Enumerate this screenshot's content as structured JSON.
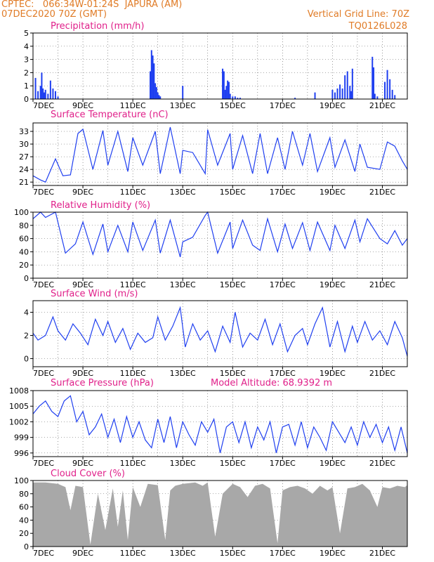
{
  "header": {
    "line1": "CPTEC:   066:34W-01:24S  JAPURA (AM)",
    "line2": "07DEC2020 70Z (GMT)",
    "grid_note": "Vertical Grid Line: 70Z",
    "code": "TQ0126L028"
  },
  "colors": {
    "header": "#e07b26",
    "title": "#e0208a",
    "series": "#1f3ff0",
    "cloud": "#a8a8a8",
    "grid": "#000000"
  },
  "x_ticks": [
    "7DEC",
    "9DEC",
    "11DEC",
    "13DEC",
    "15DEC",
    "17DEC",
    "19DEC",
    "21DEC"
  ],
  "chart_data": [
    {
      "id": "precip",
      "type": "bar",
      "title": "Precipitation (mm/h)",
      "ylim": [
        0,
        5
      ],
      "yticks": [
        0,
        1,
        2,
        3,
        4,
        5
      ],
      "grid": "vertical dotted",
      "x_unit": "days after 7DEC 00Z",
      "x_range": [
        0,
        15
      ],
      "x": [
        0.1,
        0.2,
        0.3,
        0.35,
        0.4,
        0.45,
        0.5,
        0.6,
        0.7,
        0.8,
        0.9,
        1.0,
        4.7,
        4.75,
        4.8,
        4.85,
        4.9,
        4.95,
        5.0,
        5.05,
        5.1,
        6.0,
        7.6,
        7.65,
        7.7,
        7.75,
        7.8,
        7.85,
        7.9,
        8.0,
        8.1,
        8.2,
        8.3,
        10.5,
        11.3,
        12.0,
        12.1,
        12.2,
        12.3,
        12.4,
        12.5,
        12.6,
        12.7,
        12.75,
        12.8,
        13.6,
        13.65,
        13.7,
        13.8,
        14.1,
        14.2,
        14.3,
        14.4,
        14.5
      ],
      "values": [
        1.6,
        0.6,
        1.0,
        2.0,
        0.8,
        0.5,
        0.7,
        0.4,
        1.4,
        0.8,
        0.6,
        0.2,
        2.1,
        3.7,
        3.3,
        2.7,
        1.2,
        0.9,
        0.5,
        0.3,
        0.2,
        1.0,
        2.3,
        2.1,
        0.7,
        1.0,
        1.4,
        1.3,
        0.4,
        0.2,
        0.2,
        0.1,
        0.1,
        0.1,
        0.5,
        0.7,
        0.5,
        0.8,
        1.1,
        0.8,
        1.8,
        2.1,
        1.0,
        0.6,
        2.3,
        3.2,
        2.4,
        0.4,
        0.2,
        1.3,
        2.2,
        1.5,
        0.7,
        0.3
      ]
    },
    {
      "id": "temp",
      "type": "line",
      "title": "Surface Temperature (nC)",
      "ylim": [
        20.2,
        35
      ],
      "yticks": [
        21,
        24,
        27,
        30,
        33
      ],
      "grid": "vertical dotted",
      "x_unit": "days after 7DEC 00Z",
      "x_range": [
        0,
        15
      ],
      "x": [
        0,
        0.3,
        0.5,
        0.9,
        1.2,
        1.5,
        1.8,
        2.0,
        2.4,
        2.8,
        3.0,
        3.4,
        3.8,
        4.0,
        4.4,
        4.9,
        5.1,
        5.5,
        5.9,
        6.0,
        6.4,
        6.9,
        7.0,
        7.4,
        7.9,
        8.0,
        8.4,
        8.8,
        9.1,
        9.4,
        9.8,
        10.1,
        10.4,
        10.8,
        11.1,
        11.4,
        11.9,
        12.1,
        12.5,
        12.9,
        13.1,
        13.4,
        13.9,
        14.2,
        14.5,
        14.8,
        15.0
      ],
      "values": [
        22.5,
        21.5,
        21.0,
        26.5,
        22.5,
        22.7,
        32.5,
        33.5,
        24.0,
        33.2,
        25.0,
        33.0,
        23.5,
        31.5,
        25.0,
        33.0,
        23.0,
        34.0,
        23.0,
        28.5,
        28.0,
        23.0,
        33.4,
        25.0,
        32.5,
        24.0,
        32.0,
        23.0,
        32.5,
        23.0,
        31.5,
        24.0,
        33.0,
        25.0,
        32.5,
        23.5,
        31.5,
        24.5,
        31.0,
        23.5,
        30.0,
        24.5,
        24.0,
        30.5,
        29.5,
        26.0,
        24.0
      ]
    },
    {
      "id": "rh",
      "type": "line",
      "title": "Relative Humidity (%)",
      "ylim": [
        0,
        100
      ],
      "yticks": [
        0,
        20,
        40,
        60,
        80,
        100
      ],
      "grid": "vertical dotted",
      "x_unit": "days after 7DEC 00Z",
      "x_range": [
        0,
        15
      ],
      "x": [
        0,
        0.3,
        0.5,
        0.9,
        1.3,
        1.7,
        2.0,
        2.4,
        2.8,
        3.0,
        3.4,
        3.8,
        4.0,
        4.4,
        4.9,
        5.1,
        5.5,
        5.9,
        6.0,
        6.4,
        6.9,
        7.0,
        7.4,
        7.9,
        8.0,
        8.4,
        8.8,
        9.1,
        9.4,
        9.8,
        10.1,
        10.4,
        10.8,
        11.1,
        11.4,
        11.9,
        12.1,
        12.5,
        12.9,
        13.1,
        13.4,
        13.9,
        14.2,
        14.5,
        14.8,
        15.0
      ],
      "values": [
        90,
        100,
        92,
        100,
        38,
        52,
        85,
        36,
        82,
        40,
        80,
        40,
        85,
        42,
        88,
        38,
        88,
        32,
        55,
        62,
        95,
        100,
        38,
        85,
        45,
        88,
        50,
        42,
        90,
        40,
        82,
        45,
        84,
        42,
        85,
        42,
        80,
        45,
        88,
        55,
        90,
        60,
        52,
        72,
        50,
        60
      ]
    },
    {
      "id": "wind",
      "type": "line",
      "title": "Surface Wind (m/s)",
      "ylim": [
        -0.7,
        5
      ],
      "yticks": [
        0,
        2,
        4
      ],
      "grid": "vertical dotted",
      "x_unit": "days after 7DEC 00Z",
      "x_range": [
        0,
        15
      ],
      "x": [
        0,
        0.2,
        0.5,
        0.8,
        1.0,
        1.3,
        1.6,
        1.9,
        2.2,
        2.5,
        2.8,
        3.0,
        3.3,
        3.6,
        3.9,
        4.2,
        4.5,
        4.8,
        5.0,
        5.3,
        5.6,
        5.9,
        6.1,
        6.4,
        6.7,
        7.0,
        7.3,
        7.6,
        7.9,
        8.1,
        8.4,
        8.7,
        9.0,
        9.3,
        9.6,
        9.9,
        10.2,
        10.5,
        10.8,
        11.0,
        11.3,
        11.6,
        11.9,
        12.2,
        12.5,
        12.8,
        13.0,
        13.3,
        13.6,
        13.9,
        14.2,
        14.5,
        14.8,
        15.0
      ],
      "values": [
        2.2,
        1.6,
        2.0,
        3.6,
        2.4,
        1.6,
        3.0,
        2.2,
        1.2,
        3.4,
        2.0,
        3.2,
        1.4,
        2.6,
        0.8,
        2.2,
        1.4,
        1.8,
        3.6,
        1.6,
        2.8,
        4.4,
        1.0,
        3.0,
        1.6,
        2.4,
        0.6,
        2.8,
        1.4,
        4.0,
        1.0,
        2.2,
        1.6,
        3.4,
        1.2,
        3.0,
        0.6,
        2.0,
        2.6,
        1.2,
        3.0,
        4.4,
        1.0,
        3.2,
        0.6,
        2.8,
        1.4,
        3.2,
        1.6,
        2.4,
        1.2,
        3.2,
        1.8,
        0.2
      ]
    },
    {
      "id": "pressure",
      "type": "line",
      "title": "Surface Pressure (hPa)",
      "subtitle": "Model Altitude: 68.9392 m",
      "ylim": [
        995.3,
        1008
      ],
      "yticks": [
        996,
        999,
        1002,
        1005,
        1008
      ],
      "grid": "vertical dotted",
      "x_unit": "days after 7DEC 00Z",
      "x_range": [
        0,
        15
      ],
      "x": [
        0,
        0.25,
        0.5,
        0.75,
        1.0,
        1.25,
        1.5,
        1.75,
        2.0,
        2.25,
        2.5,
        2.75,
        3.0,
        3.25,
        3.5,
        3.75,
        4.0,
        4.25,
        4.5,
        4.75,
        5.0,
        5.25,
        5.5,
        5.75,
        6.0,
        6.25,
        6.5,
        6.75,
        7.0,
        7.25,
        7.5,
        7.75,
        8.0,
        8.25,
        8.5,
        8.75,
        9.0,
        9.25,
        9.5,
        9.75,
        10.0,
        10.25,
        10.5,
        10.75,
        11.0,
        11.25,
        11.5,
        11.75,
        12.0,
        12.25,
        12.5,
        12.75,
        13.0,
        13.25,
        13.5,
        13.75,
        14.0,
        14.25,
        14.5,
        14.75,
        15.0
      ],
      "values": [
        1003.5,
        1005,
        1006,
        1004,
        1003,
        1006,
        1007,
        1002,
        1004,
        999.5,
        1001,
        1003.5,
        999,
        1002.5,
        998,
        1003,
        999,
        1002,
        998.5,
        997,
        1002.5,
        998,
        1003,
        997,
        1002,
        999.5,
        997.5,
        1002,
        1000,
        1002.5,
        996,
        1001,
        1002,
        998,
        1002,
        997,
        1001,
        998.5,
        1002,
        996,
        1001,
        1001.5,
        997.5,
        1002,
        997,
        1001,
        999,
        996.5,
        1002,
        1000,
        998,
        1001,
        997.5,
        1002,
        999,
        1001.5,
        998,
        1001,
        996.5,
        1001,
        996
      ]
    },
    {
      "id": "cloud",
      "type": "area",
      "title": "Cloud Cover (%)",
      "ylim": [
        0,
        100
      ],
      "yticks": [
        0,
        20,
        40,
        60,
        80,
        100
      ],
      "grid": "vertical dotted",
      "x_unit": "days after 7DEC 00Z",
      "x_range": [
        0,
        15
      ],
      "x": [
        0,
        0.5,
        1.0,
        1.3,
        1.5,
        1.7,
        2.0,
        2.3,
        2.6,
        2.9,
        3.2,
        3.4,
        3.6,
        3.8,
        4.0,
        4.3,
        4.6,
        5.0,
        5.3,
        5.5,
        5.7,
        6.0,
        6.5,
        6.8,
        7.0,
        7.3,
        7.6,
        8.0,
        8.3,
        8.6,
        8.9,
        9.2,
        9.5,
        9.8,
        10.0,
        10.3,
        10.6,
        10.9,
        11.2,
        11.5,
        11.8,
        12.0,
        12.3,
        12.6,
        12.9,
        13.2,
        13.5,
        13.8,
        14.0,
        14.3,
        14.6,
        14.9,
        15.0
      ],
      "values": [
        97,
        97,
        95,
        90,
        55,
        92,
        90,
        3,
        80,
        25,
        88,
        30,
        85,
        10,
        90,
        60,
        95,
        93,
        10,
        85,
        92,
        95,
        97,
        92,
        97,
        15,
        80,
        95,
        90,
        75,
        92,
        95,
        88,
        5,
        85,
        90,
        92,
        88,
        80,
        92,
        85,
        90,
        20,
        88,
        90,
        95,
        85,
        60,
        90,
        88,
        92,
        90,
        93
      ]
    }
  ]
}
